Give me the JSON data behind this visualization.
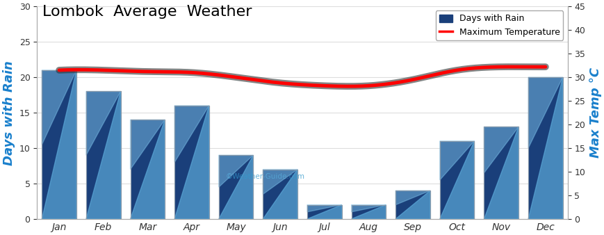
{
  "months": [
    "Jan",
    "Feb",
    "Mar",
    "Apr",
    "May",
    "Jun",
    "Jul",
    "Aug",
    "Sep",
    "Oct",
    "Nov",
    "Dec"
  ],
  "rain_days": [
    21,
    18,
    14,
    16,
    9,
    7,
    2,
    2,
    4,
    11,
    13,
    20
  ],
  "max_temp": [
    31.5,
    31.5,
    31.2,
    31.0,
    30.0,
    28.8,
    28.2,
    28.2,
    29.5,
    31.5,
    32.2,
    32.2
  ],
  "bar_color_dark": "#1a3f7a",
  "bar_color_mid": "#2a6fba",
  "bar_color_light": "#5ba8d8",
  "line_color": "#ff0000",
  "shadow_color": "#333333",
  "title": "Lombok  Average  Weather",
  "ylabel_left": "Days with Rain",
  "ylabel_right": "Max Temp °C",
  "ylim_left": [
    0,
    30
  ],
  "ylim_right": [
    0,
    45
  ],
  "yticks_left": [
    0,
    5,
    10,
    15,
    20,
    25,
    30
  ],
  "yticks_right": [
    0,
    5,
    10,
    15,
    20,
    25,
    30,
    35,
    40,
    45
  ],
  "bg_color": "#ffffff",
  "watermark": "©Weather-Guide.com",
  "title_fontsize": 16,
  "axis_label_fontsize": 13,
  "bar_edge_color": "#8899aa",
  "grid_color": "#dddddd"
}
